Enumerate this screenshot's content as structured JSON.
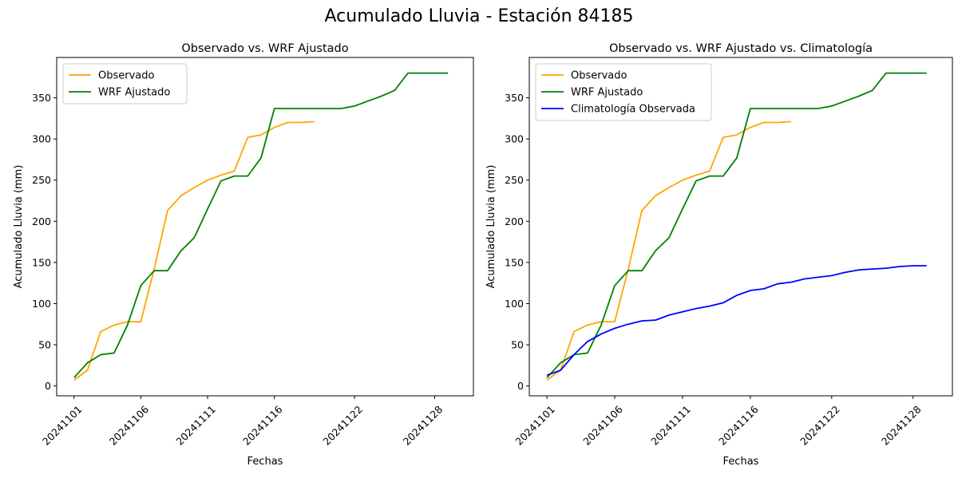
{
  "figure": {
    "title": "Acumulado Lluvia - Estación 84185"
  },
  "chart_data": [
    {
      "type": "line",
      "title": "Observado vs. WRF Ajustado",
      "xlabel": "Fechas",
      "ylabel": "Acumulado Lluvia (mm)",
      "x_tick_labels": [
        "20241101",
        "20241106",
        "20241111",
        "20241116",
        "20241122",
        "20241128"
      ],
      "y_ticks": [
        0,
        50,
        100,
        150,
        200,
        250,
        300,
        350
      ],
      "ylim": [
        -12,
        399
      ],
      "legend_position": "upper-left",
      "series": [
        {
          "name": "Observado",
          "color": "#FFA500",
          "x": [
            "20241101",
            "20241102",
            "20241103",
            "20241104",
            "20241105",
            "20241106",
            "20241107",
            "20241108",
            "20241109",
            "20241110",
            "20241111",
            "20241112",
            "20241113",
            "20241114",
            "20241115",
            "20241116",
            "20241117",
            "20241118",
            "20241119"
          ],
          "values": [
            7,
            19,
            66,
            74,
            78,
            78,
            142,
            213,
            231,
            241,
            250,
            256,
            261,
            302,
            305,
            314,
            320,
            320,
            321
          ]
        },
        {
          "name": "WRF Ajustado",
          "color": "#008000",
          "x": [
            "20241101",
            "20241102",
            "20241103",
            "20241104",
            "20241105",
            "20241106",
            "20241107",
            "20241108",
            "20241109",
            "20241110",
            "20241111",
            "20241112",
            "20241113",
            "20241114",
            "20241115",
            "20241116",
            "20241117",
            "20241118",
            "20241119",
            "20241120",
            "20241121",
            "20241122",
            "20241123",
            "20241124",
            "20241125",
            "20241126",
            "20241127",
            "20241128",
            "20241129"
          ],
          "values": [
            10,
            28,
            38,
            40,
            74,
            122,
            140,
            140,
            164,
            180,
            215,
            249,
            255,
            255,
            277,
            337,
            337,
            337,
            337,
            337,
            337,
            340,
            346,
            352,
            359,
            380,
            380,
            380,
            380
          ]
        }
      ]
    },
    {
      "type": "line",
      "title": "Observado vs. WRF Ajustado vs. Climatología",
      "xlabel": "Fechas",
      "ylabel": "Acumulado Lluvia (mm)",
      "x_tick_labels": [
        "20241101",
        "20241106",
        "20241111",
        "20241116",
        "20241122",
        "20241128"
      ],
      "y_ticks": [
        0,
        50,
        100,
        150,
        200,
        250,
        300,
        350
      ],
      "ylim": [
        -12,
        399
      ],
      "legend_position": "upper-left",
      "series": [
        {
          "name": "Observado",
          "color": "#FFA500",
          "x": [
            "20241101",
            "20241102",
            "20241103",
            "20241104",
            "20241105",
            "20241106",
            "20241107",
            "20241108",
            "20241109",
            "20241110",
            "20241111",
            "20241112",
            "20241113",
            "20241114",
            "20241115",
            "20241116",
            "20241117",
            "20241118",
            "20241119"
          ],
          "values": [
            7,
            19,
            66,
            74,
            78,
            78,
            142,
            213,
            231,
            241,
            250,
            256,
            261,
            302,
            305,
            314,
            320,
            320,
            321
          ]
        },
        {
          "name": "WRF Ajustado",
          "color": "#008000",
          "x": [
            "20241101",
            "20241102",
            "20241103",
            "20241104",
            "20241105",
            "20241106",
            "20241107",
            "20241108",
            "20241109",
            "20241110",
            "20241111",
            "20241112",
            "20241113",
            "20241114",
            "20241115",
            "20241116",
            "20241117",
            "20241118",
            "20241119",
            "20241120",
            "20241121",
            "20241122",
            "20241123",
            "20241124",
            "20241125",
            "20241126",
            "20241127",
            "20241128",
            "20241129"
          ],
          "values": [
            10,
            28,
            38,
            40,
            74,
            122,
            140,
            140,
            164,
            180,
            215,
            249,
            255,
            255,
            277,
            337,
            337,
            337,
            337,
            337,
            337,
            340,
            346,
            352,
            359,
            380,
            380,
            380,
            380
          ]
        },
        {
          "name": "Climatología Observada",
          "color": "#0000FF",
          "x": [
            "20241101",
            "20241102",
            "20241103",
            "20241104",
            "20241105",
            "20241106",
            "20241107",
            "20241108",
            "20241109",
            "20241110",
            "20241111",
            "20241112",
            "20241113",
            "20241114",
            "20241115",
            "20241116",
            "20241117",
            "20241118",
            "20241119",
            "20241120",
            "20241121",
            "20241122",
            "20241123",
            "20241124",
            "20241125",
            "20241126",
            "20241127",
            "20241128",
            "20241129"
          ],
          "values": [
            13,
            19,
            38,
            54,
            63,
            70,
            75,
            79,
            80,
            86,
            90,
            94,
            97,
            101,
            110,
            116,
            118,
            124,
            126,
            130,
            132,
            134,
            138,
            141,
            142,
            143,
            145,
            146,
            146
          ]
        }
      ]
    }
  ]
}
